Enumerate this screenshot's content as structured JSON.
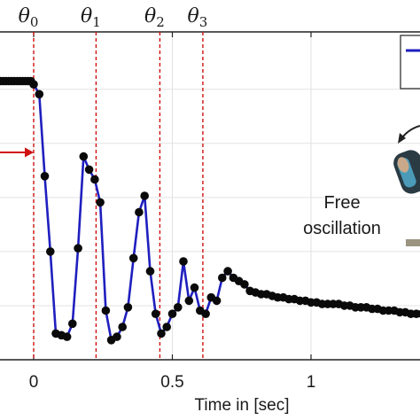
{
  "chart_data": {
    "type": "line",
    "xlabel": "Time in [sec]",
    "xlim": [
      -0.13,
      1.43
    ],
    "ylim": [
      0,
      10
    ],
    "x_ticks": [
      0,
      0.5,
      1
    ],
    "x_tick_labels": [
      "0",
      "0.5",
      "1"
    ],
    "grid": true,
    "grid_y": [
      1.65,
      3.3,
      4.95,
      6.6,
      8.25
    ],
    "series": [
      {
        "color": "#1f1fbf",
        "marker_color": "#0a0a0a",
        "x": [
          -0.13,
          -0.12,
          -0.11,
          -0.1,
          -0.09,
          -0.08,
          -0.07,
          -0.06,
          -0.05,
          -0.04,
          -0.03,
          -0.02,
          -0.01,
          0.0,
          0.02,
          0.04,
          0.06,
          0.08,
          0.1,
          0.12,
          0.14,
          0.16,
          0.18,
          0.2,
          0.22,
          0.24,
          0.26,
          0.28,
          0.3,
          0.32,
          0.34,
          0.36,
          0.38,
          0.4,
          0.42,
          0.44,
          0.46,
          0.48,
          0.5,
          0.52,
          0.54,
          0.56,
          0.58,
          0.6,
          0.62,
          0.64,
          0.66,
          0.68,
          0.7,
          0.72,
          0.74,
          0.76,
          0.78,
          0.8,
          0.82,
          0.84,
          0.86,
          0.88,
          0.9,
          0.92,
          0.94,
          0.96,
          0.98,
          1.0,
          1.02,
          1.04,
          1.06,
          1.08,
          1.1,
          1.12,
          1.14,
          1.16,
          1.18,
          1.2,
          1.22,
          1.24,
          1.26,
          1.28,
          1.3,
          1.32,
          1.34,
          1.36,
          1.38,
          1.4,
          1.42
        ],
        "y": [
          8.5,
          8.5,
          8.5,
          8.5,
          8.5,
          8.5,
          8.5,
          8.5,
          8.5,
          8.5,
          8.5,
          8.5,
          8.5,
          8.4,
          8.1,
          5.6,
          3.3,
          0.8,
          0.75,
          0.7,
          1.1,
          3.4,
          6.2,
          5.8,
          5.5,
          4.8,
          1.5,
          0.6,
          0.7,
          1.0,
          1.6,
          3.1,
          4.5,
          5.0,
          2.7,
          1.4,
          0.8,
          1.0,
          1.4,
          1.6,
          3.0,
          1.8,
          2.2,
          1.5,
          1.4,
          1.9,
          1.8,
          2.5,
          2.7,
          2.5,
          2.4,
          2.3,
          2.1,
          2.05,
          2.0,
          2.0,
          1.95,
          1.9,
          1.9,
          1.85,
          1.85,
          1.8,
          1.8,
          1.75,
          1.75,
          1.7,
          1.7,
          1.7,
          1.7,
          1.65,
          1.65,
          1.6,
          1.6,
          1.6,
          1.55,
          1.55,
          1.5,
          1.5,
          1.5,
          1.45,
          1.45,
          1.4,
          1.4,
          1.4,
          1.35
        ]
      }
    ],
    "markers": [
      {
        "label": "θ",
        "sub": "0",
        "x": 0.0
      },
      {
        "label": "θ",
        "sub": "1",
        "x": 0.225
      },
      {
        "label": "θ",
        "sub": "2",
        "x": 0.455
      },
      {
        "label": "θ",
        "sub": "3",
        "x": 0.61
      }
    ],
    "annotations": {
      "free_oscillation_line1": "Free",
      "free_oscillation_line2": "oscillation"
    },
    "colors": {
      "line": "#1f1fbf",
      "marker_line": "#d01010",
      "arrow": "#d01010",
      "grid": "#e2e2e2",
      "axis": "#222222"
    }
  }
}
